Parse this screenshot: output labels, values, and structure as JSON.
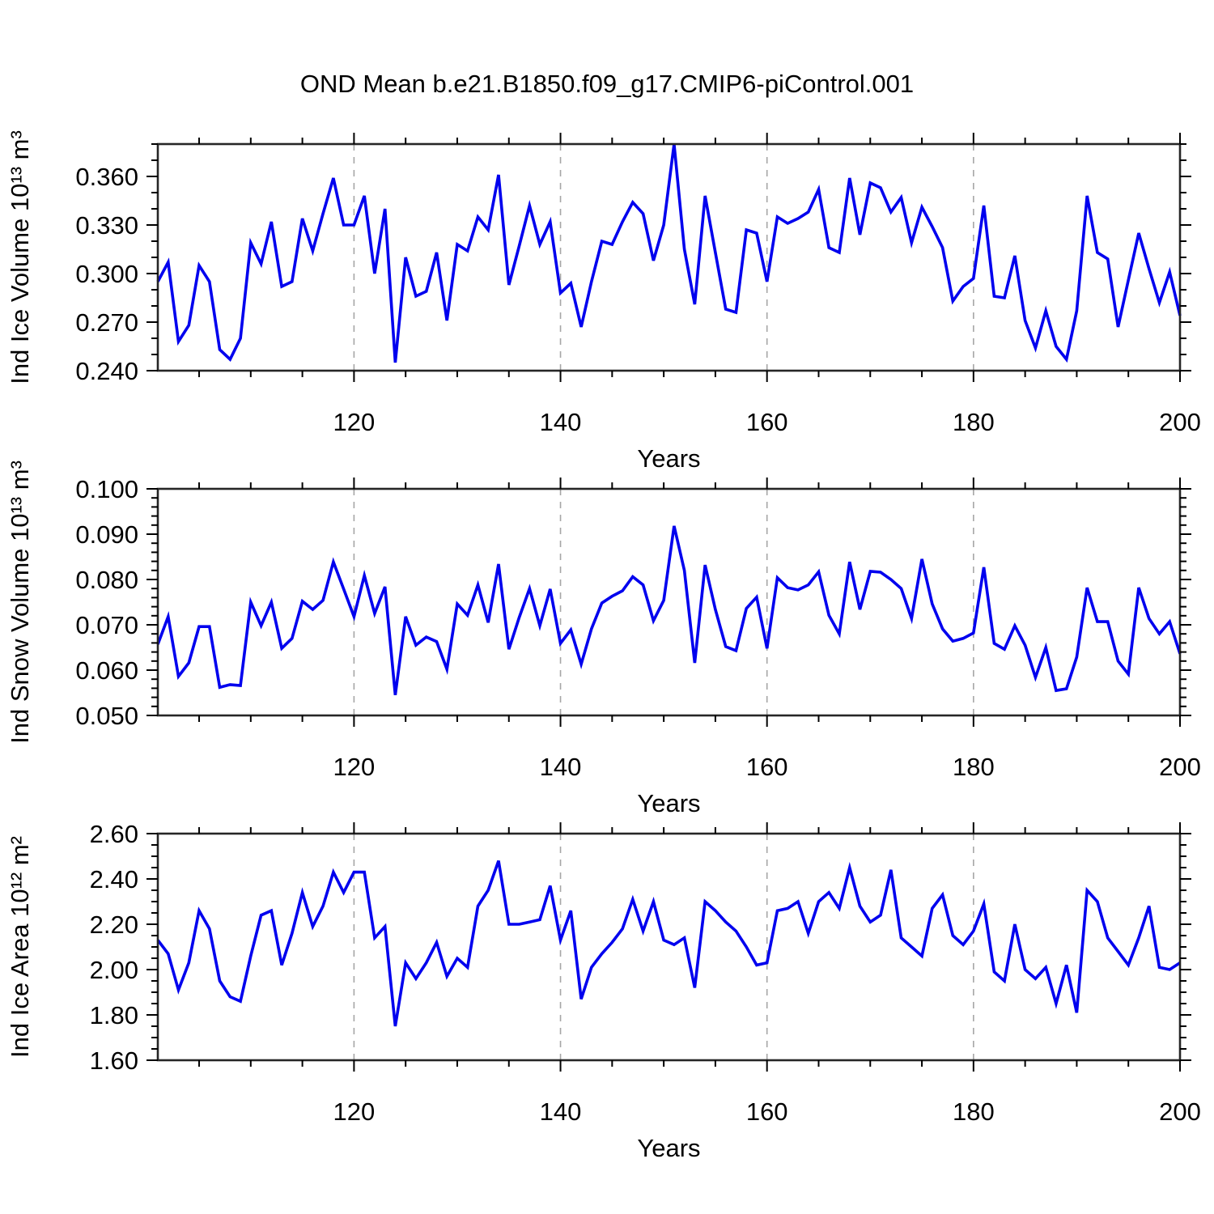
{
  "title": "OND Mean b.e21.B1850.f09_g17.CMIP6-piControl.001",
  "accent_color": "#0000ee",
  "axis_color": "#262626",
  "grid_color": "#a6a6a6",
  "chart_data": [
    {
      "type": "line",
      "name": "ice-volume",
      "ylabel": "Ind Ice Volume 10¹³ m³",
      "xlabel": "Years",
      "xlim": [
        101,
        200
      ],
      "ylim": [
        0.24,
        0.38
      ],
      "x_start": 101,
      "xtick_labels": [
        "120",
        "140",
        "160",
        "180",
        "200"
      ],
      "xtick_values": [
        120,
        140,
        160,
        180,
        200
      ],
      "x_minor_step": 5,
      "ytick_labels": [
        "0.240",
        "0.270",
        "0.300",
        "0.330",
        "0.360"
      ],
      "ytick_values": [
        0.24,
        0.27,
        0.3,
        0.33,
        0.36
      ],
      "y_minor_step": 0.01,
      "gridlines": [
        120,
        140,
        160,
        180
      ],
      "legend": "none",
      "grid": "dashed-vertical",
      "values": [
        0.295,
        0.307,
        0.258,
        0.268,
        0.305,
        0.295,
        0.253,
        0.247,
        0.26,
        0.319,
        0.306,
        0.332,
        0.292,
        0.295,
        0.334,
        0.314,
        0.337,
        0.359,
        0.33,
        0.33,
        0.348,
        0.3,
        0.34,
        0.245,
        0.31,
        0.286,
        0.289,
        0.313,
        0.271,
        0.318,
        0.314,
        0.335,
        0.327,
        0.361,
        0.293,
        0.317,
        0.342,
        0.318,
        0.332,
        0.288,
        0.294,
        0.267,
        0.295,
        0.32,
        0.318,
        0.332,
        0.344,
        0.337,
        0.308,
        0.33,
        0.38,
        0.315,
        0.281,
        0.348,
        0.313,
        0.278,
        0.276,
        0.327,
        0.325,
        0.295,
        0.335,
        0.331,
        0.334,
        0.338,
        0.352,
        0.316,
        0.313,
        0.359,
        0.324,
        0.356,
        0.353,
        0.338,
        0.347,
        0.319,
        0.341,
        0.329,
        0.316,
        0.283,
        0.292,
        0.297,
        0.342,
        0.286,
        0.285,
        0.311,
        0.271,
        0.254,
        0.277,
        0.255,
        0.247,
        0.277,
        0.348,
        0.313,
        0.309,
        0.267,
        0.296,
        0.325,
        0.303,
        0.282,
        0.301,
        0.274
      ]
    },
    {
      "type": "line",
      "name": "snow-volume",
      "ylabel": "Ind Snow Volume 10¹³ m³",
      "xlabel": "Years",
      "xlim": [
        101,
        200
      ],
      "ylim": [
        0.05,
        0.1
      ],
      "x_start": 101,
      "xtick_labels": [
        "120",
        "140",
        "160",
        "180",
        "200"
      ],
      "xtick_values": [
        120,
        140,
        160,
        180,
        200
      ],
      "x_minor_step": 5,
      "ytick_labels": [
        "0.050",
        "0.060",
        "0.070",
        "0.080",
        "0.090",
        "0.100"
      ],
      "ytick_values": [
        0.05,
        0.06,
        0.07,
        0.08,
        0.09,
        0.1
      ],
      "y_minor_step": 0.002,
      "gridlines": [
        120,
        140,
        160,
        180
      ],
      "legend": "none",
      "grid": "dashed-vertical",
      "values": [
        0.0657,
        0.0718,
        0.0586,
        0.0616,
        0.0696,
        0.0696,
        0.0562,
        0.0568,
        0.0566,
        0.075,
        0.0698,
        0.075,
        0.0648,
        0.067,
        0.0752,
        0.0734,
        0.0754,
        0.0839,
        0.0779,
        0.0718,
        0.0809,
        0.0725,
        0.0784,
        0.0545,
        0.0718,
        0.0655,
        0.0673,
        0.0663,
        0.0602,
        0.0746,
        0.0721,
        0.0788,
        0.0705,
        0.0834,
        0.0646,
        0.0716,
        0.078,
        0.0698,
        0.0779,
        0.0659,
        0.0689,
        0.0613,
        0.0691,
        0.0748,
        0.0763,
        0.0775,
        0.0806,
        0.0788,
        0.0709,
        0.0754,
        0.0918,
        0.082,
        0.0616,
        0.0832,
        0.0734,
        0.0652,
        0.0643,
        0.0736,
        0.0761,
        0.0648,
        0.0804,
        0.0782,
        0.0777,
        0.0788,
        0.0817,
        0.0721,
        0.068,
        0.0839,
        0.0734,
        0.0818,
        0.0816,
        0.08,
        0.078,
        0.0714,
        0.0845,
        0.0746,
        0.0691,
        0.0664,
        0.067,
        0.0682,
        0.0827,
        0.0659,
        0.0646,
        0.0698,
        0.0655,
        0.0584,
        0.065,
        0.0555,
        0.0559,
        0.0629,
        0.0782,
        0.0707,
        0.0707,
        0.062,
        0.0591,
        0.0782,
        0.0714,
        0.068,
        0.0707,
        0.0636
      ]
    },
    {
      "type": "line",
      "name": "ice-area",
      "ylabel": "Ind Ice Area 10¹² m²",
      "xlabel": "Years",
      "xlim": [
        101,
        200
      ],
      "ylim": [
        1.6,
        2.6
      ],
      "x_start": 101,
      "xtick_labels": [
        "120",
        "140",
        "160",
        "180",
        "200"
      ],
      "xtick_values": [
        120,
        140,
        160,
        180,
        200
      ],
      "x_minor_step": 5,
      "ytick_labels": [
        "1.60",
        "1.80",
        "2.00",
        "2.20",
        "2.40",
        "2.60"
      ],
      "ytick_values": [
        1.6,
        1.8,
        2.0,
        2.2,
        2.4,
        2.6
      ],
      "y_minor_step": 0.05,
      "gridlines": [
        120,
        140,
        160,
        180
      ],
      "legend": "none",
      "grid": "dashed-vertical",
      "values": [
        2.13,
        2.07,
        1.91,
        2.03,
        2.26,
        2.18,
        1.95,
        1.88,
        1.86,
        2.06,
        2.24,
        2.26,
        2.02,
        2.16,
        2.34,
        2.19,
        2.28,
        2.43,
        2.34,
        2.43,
        2.43,
        2.14,
        2.19,
        1.75,
        2.03,
        1.96,
        2.03,
        2.12,
        1.97,
        2.05,
        2.01,
        2.28,
        2.35,
        2.48,
        2.2,
        2.2,
        2.21,
        2.22,
        2.37,
        2.13,
        2.26,
        1.87,
        2.01,
        2.07,
        2.12,
        2.18,
        2.31,
        2.17,
        2.3,
        2.13,
        2.11,
        2.14,
        1.92,
        2.3,
        2.26,
        2.21,
        2.17,
        2.1,
        2.02,
        2.03,
        2.26,
        2.27,
        2.3,
        2.16,
        2.3,
        2.34,
        2.27,
        2.45,
        2.28,
        2.21,
        2.24,
        2.44,
        2.14,
        2.1,
        2.06,
        2.27,
        2.33,
        2.15,
        2.11,
        2.17,
        2.29,
        1.99,
        1.95,
        2.2,
        2.0,
        1.96,
        2.01,
        1.85,
        2.02,
        1.81,
        2.35,
        2.3,
        2.14,
        2.08,
        2.02,
        2.14,
        2.28,
        2.01,
        2.0,
        2.03
      ]
    }
  ]
}
